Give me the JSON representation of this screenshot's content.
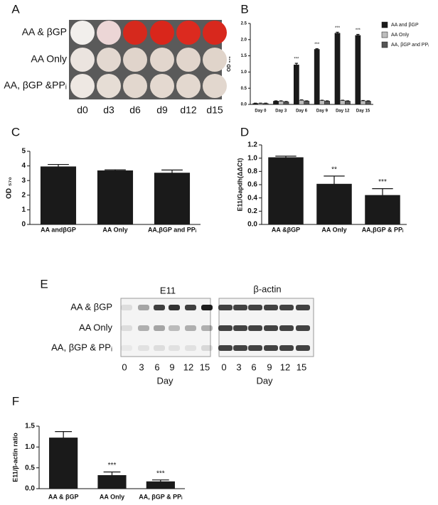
{
  "plate": {
    "panel": "A",
    "rows": [
      "AA & βGP",
      "AA Only",
      "AA, βGP &PPᵢ"
    ],
    "columns": [
      "d0",
      "d3",
      "d6",
      "d9",
      "d12",
      "d15"
    ]
  },
  "blot": {
    "panel": "E",
    "targets": [
      "E11",
      "β-actin"
    ],
    "rows": [
      "AA & βGP",
      "AA Only",
      "AA, βGP & PPᵢ"
    ],
    "days": [
      "0",
      "3",
      "6",
      "9",
      "12",
      "15"
    ],
    "xlabel": "Day"
  },
  "chart_data": [
    {
      "type": "bar",
      "panel": "B",
      "ylabel": "OD ₅₇₀",
      "categories": [
        "Day 0",
        "Day 3",
        "Day 6",
        "Day 9",
        "Day 12",
        "Day 15"
      ],
      "series": [
        {
          "name": "AA and βGP",
          "color": "#1a1a1a",
          "values": [
            0.03,
            0.1,
            1.22,
            1.7,
            2.2,
            2.13
          ],
          "errors": [
            0.01,
            0.01,
            0.05,
            0.02,
            0.03,
            0.03
          ]
        },
        {
          "name": "AA Only",
          "color": "#bdbdbd",
          "values": [
            0.03,
            0.1,
            0.13,
            0.12,
            0.12,
            0.11
          ],
          "errors": [
            0.01,
            0.01,
            0.01,
            0.01,
            0.01,
            0.01
          ]
        },
        {
          "name": "AA, βGP and PPᵢ",
          "color": "#555555",
          "values": [
            0.03,
            0.08,
            0.1,
            0.1,
            0.1,
            0.1
          ],
          "errors": [
            0.01,
            0.01,
            0.01,
            0.01,
            0.01,
            0.01
          ]
        }
      ],
      "annotations": [
        null,
        null,
        "***",
        "***",
        "***",
        "***"
      ],
      "ylim": [
        0,
        2.5
      ],
      "yticks": [
        {
          "value": 0,
          "label": "0.0"
        },
        {
          "value": 0.5,
          "label": "0.5"
        },
        {
          "value": 1,
          "label": "1.0"
        },
        {
          "value": 1.5,
          "label": "1.5"
        },
        {
          "value": 2,
          "label": "2.0"
        },
        {
          "value": 2.5,
          "label": "2.5"
        }
      ],
      "legend": "right"
    },
    {
      "type": "bar",
      "panel": "C",
      "ylabel": "OD ₅₇₀",
      "categories": [
        "AA andβGP",
        "AA Only",
        "AA,βGP and PPᵢ"
      ],
      "values": [
        3.95,
        3.68,
        3.52
      ],
      "errors": [
        0.15,
        0.05,
        0.2
      ],
      "color": "#1a1a1a",
      "ylim": [
        0,
        5
      ],
      "yticks": [
        0,
        1,
        2,
        3,
        4,
        5
      ]
    },
    {
      "type": "bar",
      "panel": "D",
      "ylabel": "E11/Gapdh(ΔΔCt)",
      "categories": [
        "AA &βGP",
        "AA Only",
        "AA,βGP & PPᵢ"
      ],
      "values": [
        1.01,
        0.61,
        0.44
      ],
      "errors": [
        0.02,
        0.12,
        0.1
      ],
      "color": "#1a1a1a",
      "annotations": [
        null,
        "**",
        "***"
      ],
      "ylim": [
        0,
        1.2
      ],
      "yticks": [
        {
          "value": 0,
          "label": "0.0"
        },
        {
          "value": 0.2,
          "label": "0.2"
        },
        {
          "value": 0.4,
          "label": "0.4"
        },
        {
          "value": 0.6,
          "label": "0.6"
        },
        {
          "value": 0.8,
          "label": "0.8"
        },
        {
          "value": 1,
          "label": "1.0"
        },
        {
          "value": 1.2,
          "label": "1.2"
        }
      ]
    },
    {
      "type": "bar",
      "panel": "F",
      "ylabel": "E11/β-actin ratio",
      "categories": [
        "AA & βGP",
        "AA Only",
        "AA, βGP & PPᵢ"
      ],
      "values": [
        1.22,
        0.32,
        0.17
      ],
      "errors": [
        0.15,
        0.08,
        0.04
      ],
      "color": "#1a1a1a",
      "annotations": [
        null,
        "***",
        "***"
      ],
      "ylim": [
        0,
        1.5
      ],
      "yticks": [
        {
          "value": 0,
          "label": "0.0"
        },
        {
          "value": 0.5,
          "label": "0.5"
        },
        {
          "value": 1,
          "label": "1.0"
        },
        {
          "value": 1.5,
          "label": "1.5"
        }
      ]
    }
  ]
}
